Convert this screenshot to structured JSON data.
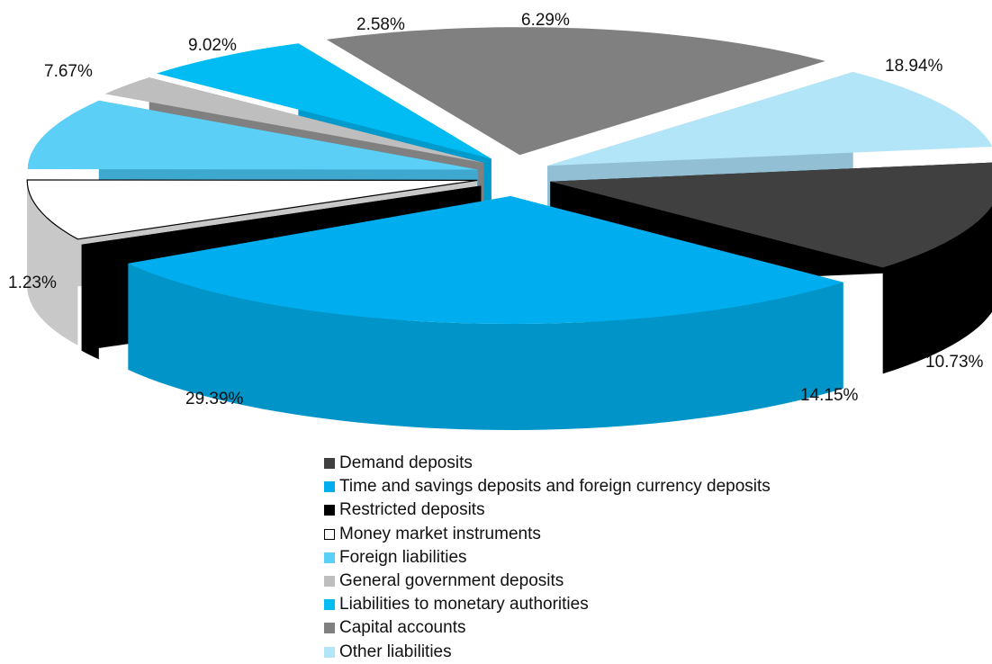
{
  "chart_data": {
    "type": "pie",
    "title": "",
    "variant": "3d-exploded",
    "legend_position": "bottom",
    "slices": [
      {
        "name": "Demand deposits",
        "value": 14.15,
        "label": "14.15%",
        "color": "#404040",
        "side": "#000000"
      },
      {
        "name": "Time and savings deposits and foreign currency deposits",
        "value": 29.39,
        "label": "29.39%",
        "color": "#00AEEF",
        "side": "#0094C8"
      },
      {
        "name": "Restricted deposits",
        "value": 1.23,
        "label": "1.23%",
        "color": "#000000",
        "side": "#000000"
      },
      {
        "name": "Money market instruments",
        "value": 7.67,
        "label": "7.67%",
        "color": "#FFFFFF",
        "side": "#C8C8C8"
      },
      {
        "name": "Foreign liabilities",
        "value": 9.02,
        "label": "9.02%",
        "color": "#5BCFF5",
        "side": "#3FA8CE"
      },
      {
        "name": "General government deposits",
        "value": 2.58,
        "label": "2.58%",
        "color": "#BEBEBE",
        "side": "#808080"
      },
      {
        "name": "Liabilities to monetary authorities",
        "value": 6.29,
        "label": "6.29%",
        "color": "#00BCF2",
        "side": "#009BCC"
      },
      {
        "name": "Capital accounts",
        "value": 18.94,
        "label": "18.94%",
        "color": "#808080",
        "side": "#404040"
      },
      {
        "name": "Other liabilities",
        "value": 10.73,
        "label": "10.73%",
        "color": "#B3E5F8",
        "side": "#92BFD4"
      }
    ]
  }
}
